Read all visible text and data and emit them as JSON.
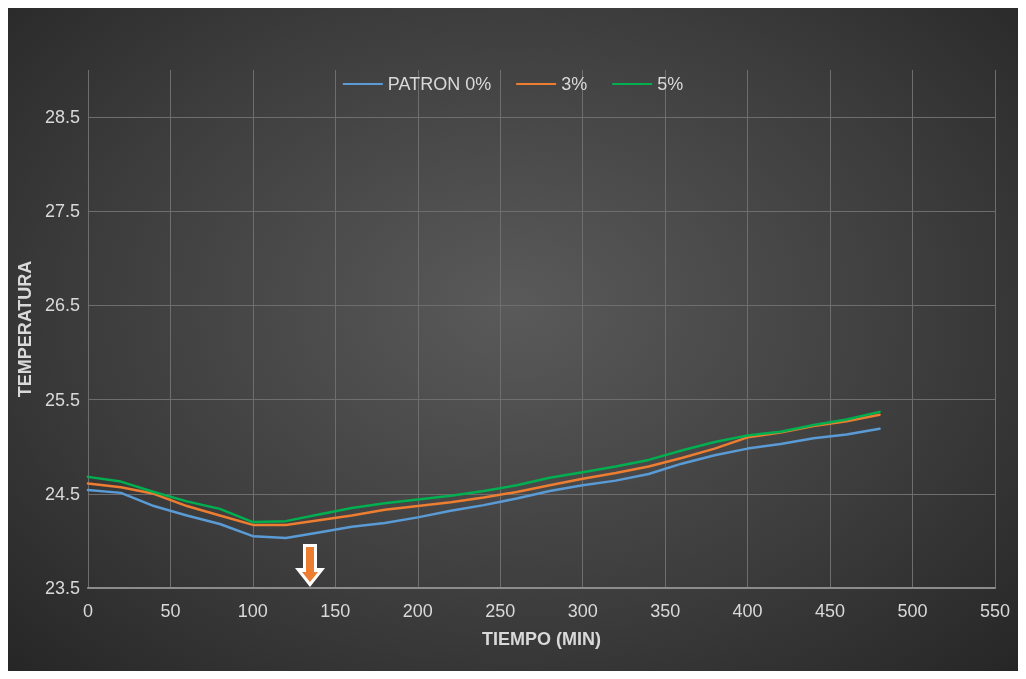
{
  "chart_data": {
    "type": "line",
    "xlabel": "TIEMPO (MIN)",
    "ylabel": "TEMPERATURA",
    "x": [
      0,
      20,
      40,
      60,
      80,
      100,
      120,
      140,
      160,
      180,
      200,
      220,
      240,
      260,
      280,
      300,
      320,
      340,
      360,
      380,
      400,
      420,
      440,
      460,
      480
    ],
    "series": [
      {
        "name": "PATRON 0%",
        "color": "#5b9bd5",
        "values": [
          24.54,
          24.51,
          24.37,
          24.27,
          24.18,
          24.05,
          24.03,
          24.09,
          24.15,
          24.19,
          24.25,
          24.32,
          24.38,
          24.45,
          24.53,
          24.59,
          24.64,
          24.71,
          24.82,
          24.91,
          24.98,
          25.03,
          25.09,
          25.13,
          25.19
        ]
      },
      {
        "name": "3%",
        "color": "#ed7d31",
        "values": [
          24.61,
          24.57,
          24.5,
          24.37,
          24.27,
          24.17,
          24.17,
          24.22,
          24.27,
          24.33,
          24.37,
          24.41,
          24.46,
          24.52,
          24.59,
          24.66,
          24.72,
          24.79,
          24.88,
          24.98,
          25.1,
          25.15,
          25.22,
          25.27,
          25.34
        ]
      },
      {
        "name": "5%",
        "color": "#00b050",
        "values": [
          24.68,
          24.63,
          24.52,
          24.42,
          24.34,
          24.2,
          24.21,
          24.28,
          24.35,
          24.4,
          24.44,
          24.48,
          24.53,
          24.59,
          24.67,
          24.73,
          24.79,
          24.86,
          24.96,
          25.05,
          25.12,
          25.16,
          25.23,
          25.29,
          25.37
        ]
      }
    ],
    "xlim": [
      0,
      550
    ],
    "xticks": [
      0,
      50,
      100,
      150,
      200,
      250,
      300,
      350,
      400,
      450,
      500,
      550
    ],
    "ylim": [
      23.5,
      29
    ],
    "yticks": [
      23.5,
      24.5,
      25.5,
      26.5,
      27.5,
      28.5
    ],
    "grid": true,
    "legend": "top",
    "marker": "none",
    "line_style": "solid"
  }
}
